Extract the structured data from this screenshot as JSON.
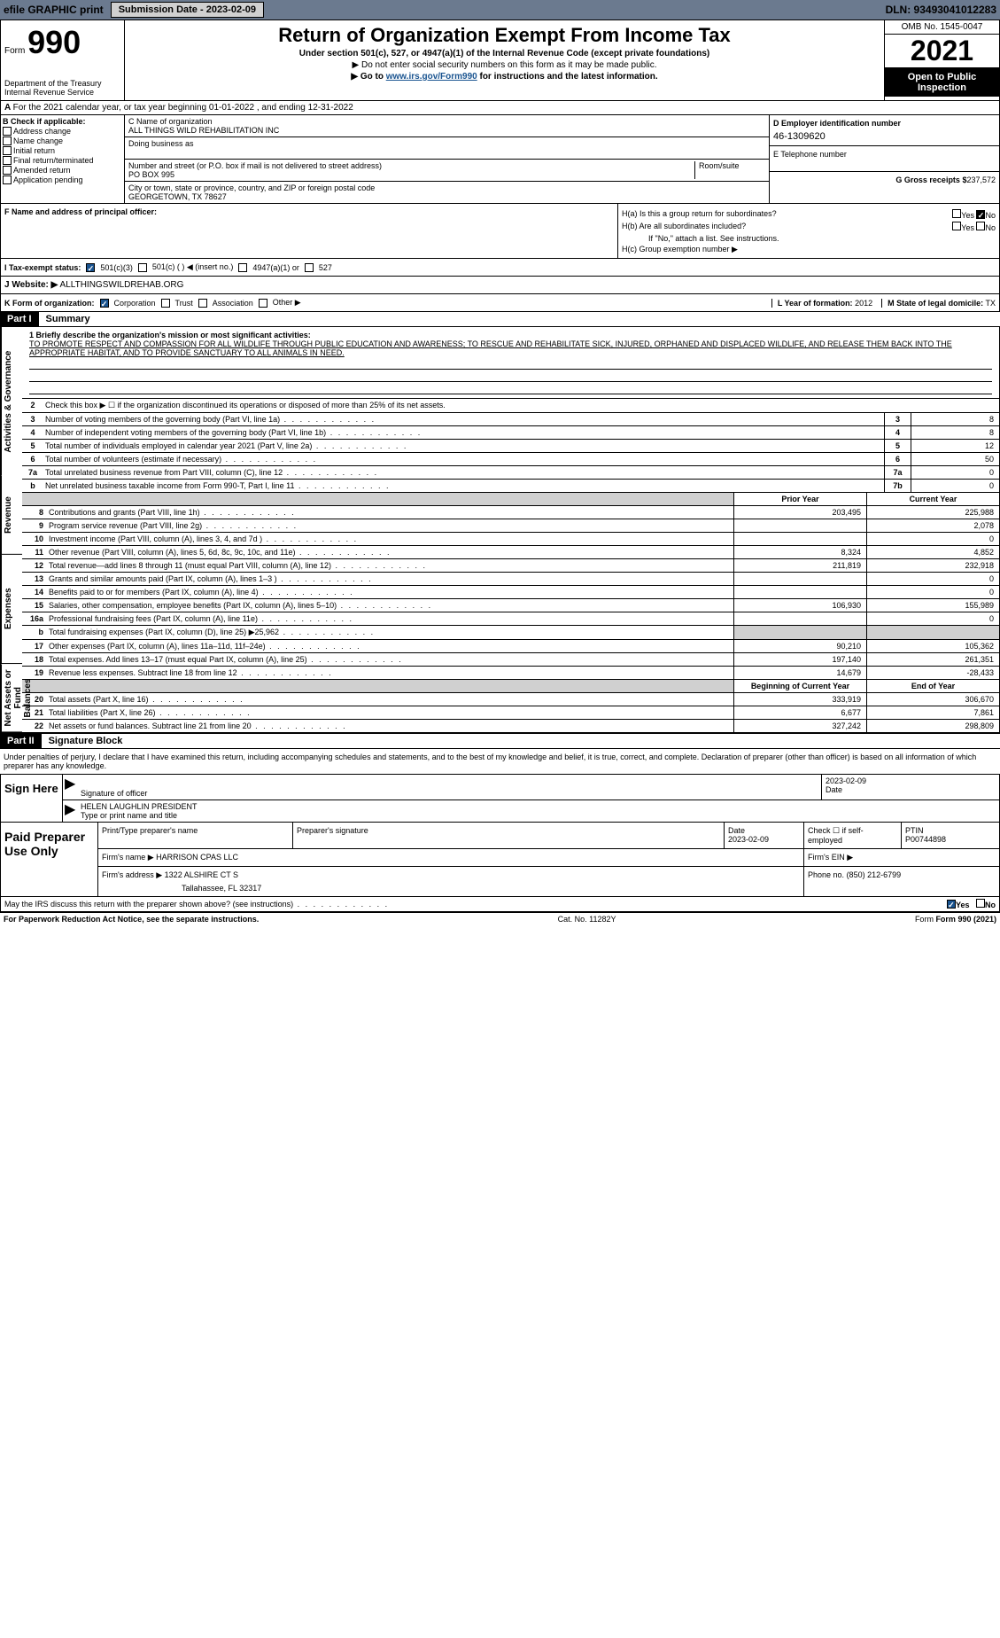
{
  "top": {
    "efile": "efile GRAPHIC print",
    "submission_btn": "Submission Date - 2023-02-09",
    "dln": "DLN: 93493041012283"
  },
  "header": {
    "form_label": "Form",
    "form_num": "990",
    "dept": "Department of the Treasury",
    "irs": "Internal Revenue Service",
    "title": "Return of Organization Exempt From Income Tax",
    "sub": "Under section 501(c), 527, or 4947(a)(1) of the Internal Revenue Code (except private foundations)",
    "note": "▶ Do not enter social security numbers on this form as it may be made public.",
    "link_pre": "▶ Go to ",
    "link": "www.irs.gov/Form990",
    "link_post": " for instructions and the latest information.",
    "omb": "OMB No. 1545-0047",
    "year": "2021",
    "inspection": "Open to Public Inspection"
  },
  "a": {
    "tax_year": "For the 2021 calendar year, or tax year beginning 01-01-2022    , and ending 12-31-2022",
    "b_label": "B Check if applicable:",
    "checks": [
      "Address change",
      "Name change",
      "Initial return",
      "Final return/terminated",
      "Amended return",
      "Application pending"
    ],
    "c_label": "C Name of organization",
    "org_name": "ALL THINGS WILD REHABILITATION INC",
    "dba_label": "Doing business as",
    "addr_label": "Number and street (or P.O. box if mail is not delivered to street address)",
    "room_label": "Room/suite",
    "addr": "PO BOX 995",
    "city_label": "City or town, state or province, country, and ZIP or foreign postal code",
    "city": "GEORGETOWN, TX  78627",
    "d_label": "D Employer identification number",
    "ein": "46-1309620",
    "e_label": "E Telephone number",
    "g_label": "G Gross receipts $",
    "g_val": "237,572"
  },
  "f": {
    "f_label": "F  Name and address of principal officer:",
    "ha_label": "H(a)  Is this a group return for subordinates?",
    "hb_label": "H(b)  Are all subordinates included?",
    "hb_note": "If \"No,\" attach a list. See instructions.",
    "hc_label": "H(c)  Group exemption number ▶",
    "yes": "Yes",
    "no": "No"
  },
  "tax_exempt": {
    "i_label": "I    Tax-exempt status:",
    "opt1": "501(c)(3)",
    "opt2": "501(c) (   ) ◀ (insert no.)",
    "opt3": "4947(a)(1) or",
    "opt4": "527"
  },
  "j": {
    "label": "J    Website: ▶",
    "value": "ALLTHINGSWILDREHAB.ORG"
  },
  "k": {
    "label": "K Form of organization:",
    "opts": [
      "Corporation",
      "Trust",
      "Association",
      "Other ▶"
    ],
    "l_label": "L Year of formation:",
    "l_val": "2012",
    "m_label": "M State of legal domicile:",
    "m_val": "TX"
  },
  "part1": {
    "header": "Part I",
    "title": "Summary",
    "vlabel1": "Activities & Governance",
    "vlabel2": "Revenue",
    "vlabel3": "Expenses",
    "vlabel4": "Net Assets or Fund Balances",
    "line1_label": "1  Briefly describe the organization's mission or most significant activities:",
    "mission": "TO PROMOTE RESPECT AND COMPASSION FOR ALL WILDLIFE THROUGH PUBLIC EDUCATION AND AWARENESS; TO RESCUE AND REHABILITATE SICK, INJURED, ORPHANED AND DISPLACED WILDLIFE, AND RELEASE THEM BACK INTO THE APPROPRIATE HABITAT, AND TO PROVIDE SANCTUARY TO ALL ANIMALS IN NEED.",
    "line2": "Check this box ▶ ☐  if the organization discontinued its operations or disposed of more than 25% of its net assets.",
    "rows_gov": [
      {
        "n": "3",
        "t": "Number of voting members of the governing body (Part VI, line 1a)",
        "box": "3",
        "v": "8"
      },
      {
        "n": "4",
        "t": "Number of independent voting members of the governing body (Part VI, line 1b)",
        "box": "4",
        "v": "8"
      },
      {
        "n": "5",
        "t": "Total number of individuals employed in calendar year 2021 (Part V, line 2a)",
        "box": "5",
        "v": "12"
      },
      {
        "n": "6",
        "t": "Total number of volunteers (estimate if necessary)",
        "box": "6",
        "v": "50"
      },
      {
        "n": "7a",
        "t": "Total unrelated business revenue from Part VIII, column (C), line 12",
        "box": "7a",
        "v": "0"
      },
      {
        "n": "b",
        "t": "Net unrelated business taxable income from Form 990-T, Part I, line 11",
        "box": "7b",
        "v": "0"
      }
    ],
    "col_prior": "Prior Year",
    "col_curr": "Current Year",
    "rows_rev": [
      {
        "n": "8",
        "t": "Contributions and grants (Part VIII, line 1h)",
        "p": "203,495",
        "c": "225,988"
      },
      {
        "n": "9",
        "t": "Program service revenue (Part VIII, line 2g)",
        "p": "",
        "c": "2,078"
      },
      {
        "n": "10",
        "t": "Investment income (Part VIII, column (A), lines 3, 4, and 7d )",
        "p": "",
        "c": "0"
      },
      {
        "n": "11",
        "t": "Other revenue (Part VIII, column (A), lines 5, 6d, 8c, 9c, 10c, and 11e)",
        "p": "8,324",
        "c": "4,852"
      },
      {
        "n": "12",
        "t": "Total revenue—add lines 8 through 11 (must equal Part VIII, column (A), line 12)",
        "p": "211,819",
        "c": "232,918"
      }
    ],
    "rows_exp": [
      {
        "n": "13",
        "t": "Grants and similar amounts paid (Part IX, column (A), lines 1–3 )",
        "p": "",
        "c": "0"
      },
      {
        "n": "14",
        "t": "Benefits paid to or for members (Part IX, column (A), line 4)",
        "p": "",
        "c": "0"
      },
      {
        "n": "15",
        "t": "Salaries, other compensation, employee benefits (Part IX, column (A), lines 5–10)",
        "p": "106,930",
        "c": "155,989"
      },
      {
        "n": "16a",
        "t": "Professional fundraising fees (Part IX, column (A), line 11e)",
        "p": "",
        "c": "0"
      },
      {
        "n": "b",
        "t": "Total fundraising expenses (Part IX, column (D), line 25) ▶25,962",
        "p": "SHADE",
        "c": "SHADE"
      },
      {
        "n": "17",
        "t": "Other expenses (Part IX, column (A), lines 11a–11d, 11f–24e)",
        "p": "90,210",
        "c": "105,362"
      },
      {
        "n": "18",
        "t": "Total expenses. Add lines 13–17 (must equal Part IX, column (A), line 25)",
        "p": "197,140",
        "c": "261,351"
      },
      {
        "n": "19",
        "t": "Revenue less expenses. Subtract line 18 from line 12",
        "p": "14,679",
        "c": "-28,433"
      }
    ],
    "net_col1": "Beginning of Current Year",
    "net_col2": "End of Year",
    "rows_net": [
      {
        "n": "20",
        "t": "Total assets (Part X, line 16)",
        "p": "333,919",
        "c": "306,670"
      },
      {
        "n": "21",
        "t": "Total liabilities (Part X, line 26)",
        "p": "6,677",
        "c": "7,861"
      },
      {
        "n": "22",
        "t": "Net assets or fund balances. Subtract line 21 from line 20",
        "p": "327,242",
        "c": "298,809"
      }
    ]
  },
  "part2": {
    "header": "Part II",
    "title": "Signature Block",
    "intro": "Under penalties of perjury, I declare that I have examined this return, including accompanying schedules and statements, and to the best of my knowledge and belief, it is true, correct, and complete. Declaration of preparer (other than officer) is based on all information of which preparer has any knowledge.",
    "sign_here": "Sign Here",
    "sig_officer": "Signature of officer",
    "sig_date": "Date",
    "sig_date_val": "2023-02-09",
    "officer_name": "HELEN LAUGHLIN  PRESIDENT",
    "type_name": "Type or print name and title",
    "paid_prep": "Paid Preparer Use Only",
    "prep_name_label": "Print/Type preparer's name",
    "prep_sig_label": "Preparer's signature",
    "prep_date_label": "Date",
    "prep_date_val": "2023-02-09",
    "check_self": "Check ☐ if self-employed",
    "ptin_label": "PTIN",
    "ptin_val": "P00744898",
    "firm_name_label": "Firm's name    ▶",
    "firm_name": "HARRISON CPAS LLC",
    "firm_ein_label": "Firm's EIN ▶",
    "firm_addr_label": "Firm's address ▶",
    "firm_addr1": "1322 ALSHIRE CT S",
    "firm_addr2": "Tallahassee, FL  32317",
    "phone_label": "Phone no.",
    "phone_val": "(850) 212-6799",
    "discuss": "May the IRS discuss this return with the preparer shown above? (see instructions)",
    "discuss_yes": "Yes",
    "discuss_no": "No"
  },
  "footer": {
    "paperwork": "For Paperwork Reduction Act Notice, see the separate instructions.",
    "cat": "Cat. No. 11282Y",
    "form": "Form 990 (2021)"
  },
  "colors": {
    "topbar_bg": "#6b7a8f",
    "link": "#1a5490"
  }
}
